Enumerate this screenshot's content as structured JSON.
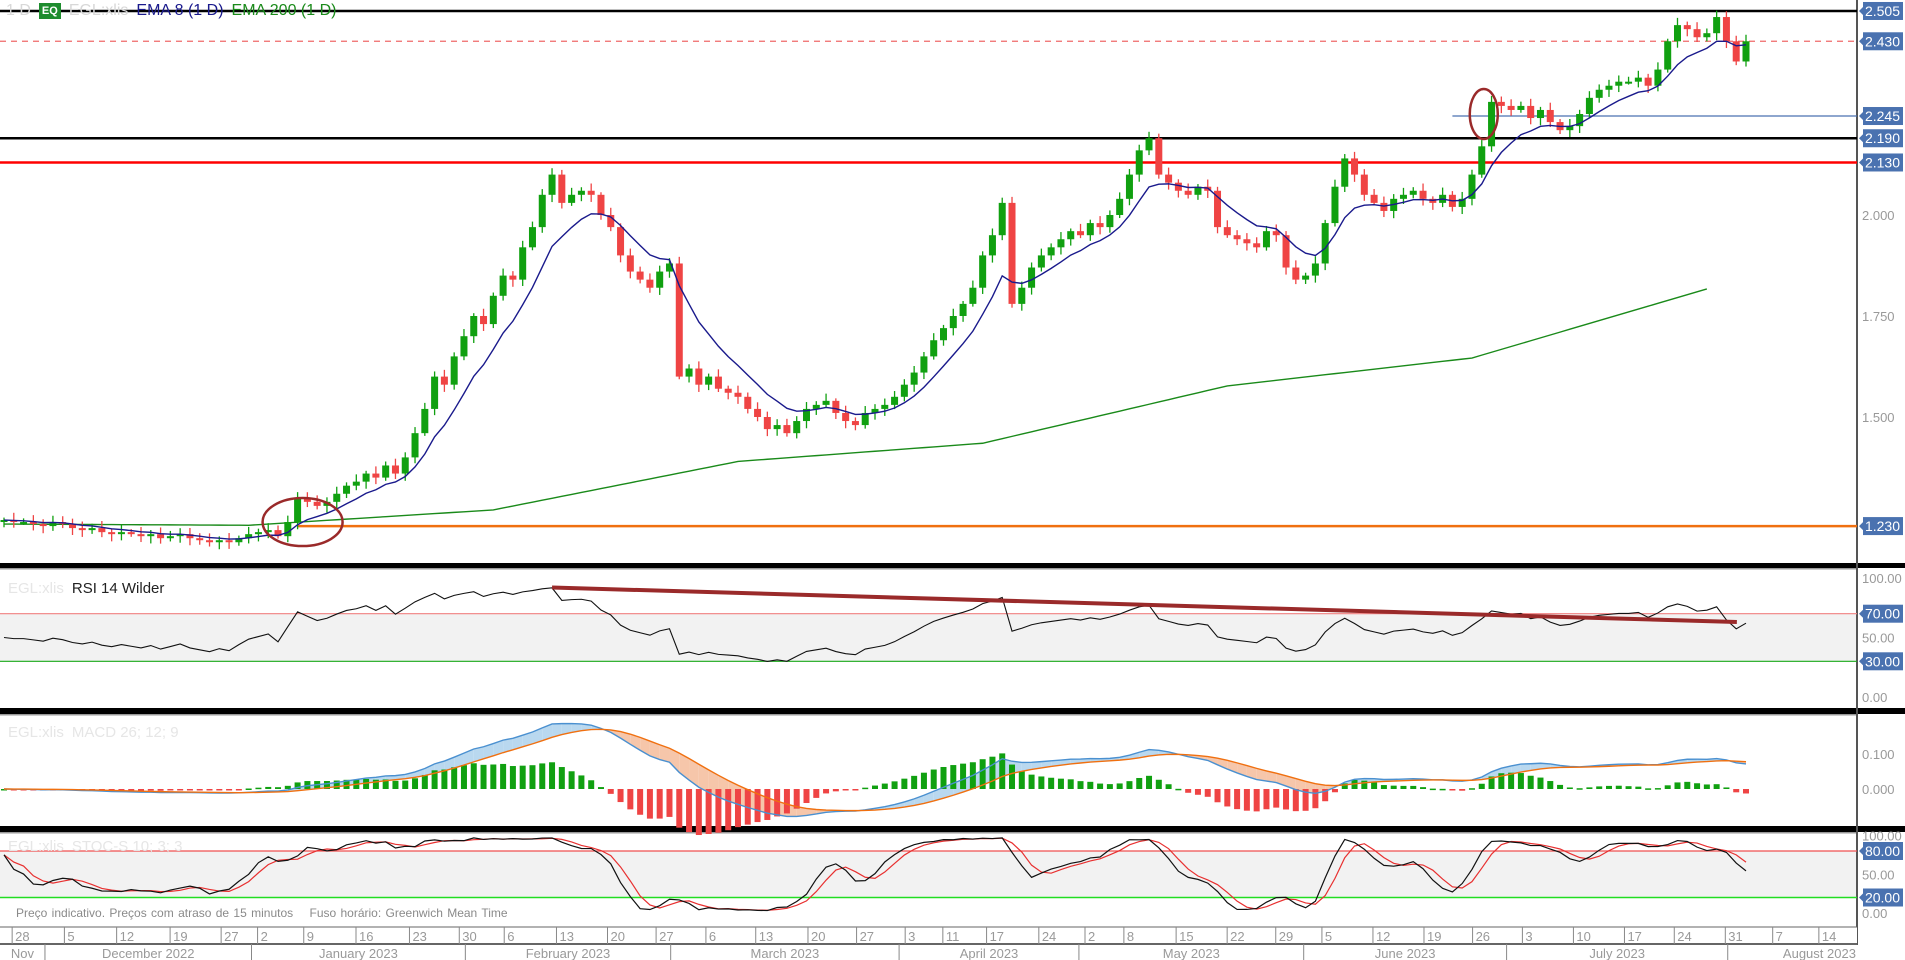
{
  "legend": {
    "interval": "1 D",
    "badge": "EQ",
    "symbol": "EGL:xlis",
    "ema8": "EMA 8 (1 D)",
    "ema200": "EMA 200 (1 D)"
  },
  "panels": {
    "rsi": {
      "symbol": "EGL:xlis",
      "label": "RSI 14 Wilder"
    },
    "macd": {
      "symbol": "EGL:xlis",
      "label": "MACD 26; 12; 9"
    },
    "stoch": {
      "symbol": "EGL:xlis",
      "label": "STOC-S 10; 3; 3"
    }
  },
  "footer": {
    "delay_note": "Preço indicativo. Preços com atraso de 15 minutos",
    "timezone_note": "Fuso horário: Greenwich Mean Time"
  },
  "colors": {
    "up": "#10a010",
    "down": "#ef4444",
    "ema8": "#1a1a8c",
    "ema200": "#1a8a1a",
    "axis_badge": "#4a72b0"
  },
  "chart_data": {
    "type": "candlestick",
    "symbol": "EGL:xlis",
    "interval": "1 D",
    "close": [
      1.245,
      1.24,
      1.24,
      1.235,
      1.23,
      1.24,
      1.235,
      1.225,
      1.22,
      1.225,
      1.215,
      1.21,
      1.215,
      1.21,
      1.205,
      1.21,
      1.2,
      1.205,
      1.21,
      1.2,
      1.195,
      1.19,
      1.195,
      1.19,
      1.2,
      1.21,
      1.215,
      1.22,
      1.205,
      1.24,
      1.3,
      1.29,
      1.28,
      1.29,
      1.31,
      1.33,
      1.34,
      1.36,
      1.35,
      1.38,
      1.36,
      1.4,
      1.46,
      1.52,
      1.6,
      1.58,
      1.65,
      1.7,
      1.75,
      1.73,
      1.8,
      1.85,
      1.84,
      1.92,
      1.97,
      2.05,
      2.1,
      2.03,
      2.05,
      2.06,
      2.05,
      2.0,
      1.97,
      1.9,
      1.86,
      1.84,
      1.82,
      1.86,
      1.88,
      1.6,
      1.62,
      1.58,
      1.6,
      1.57,
      1.56,
      1.55,
      1.52,
      1.5,
      1.47,
      1.48,
      1.46,
      1.49,
      1.52,
      1.53,
      1.54,
      1.51,
      1.49,
      1.48,
      1.51,
      1.52,
      1.53,
      1.55,
      1.58,
      1.61,
      1.65,
      1.69,
      1.72,
      1.75,
      1.78,
      1.82,
      1.9,
      1.95,
      2.03,
      1.78,
      1.82,
      1.87,
      1.9,
      1.92,
      1.94,
      1.96,
      1.95,
      1.98,
      1.97,
      2.0,
      2.04,
      2.1,
      2.16,
      2.19,
      2.1,
      2.08,
      2.06,
      2.05,
      2.07,
      2.06,
      1.97,
      1.95,
      1.94,
      1.93,
      1.92,
      1.96,
      1.95,
      1.87,
      1.84,
      1.85,
      1.88,
      1.98,
      2.07,
      2.14,
      2.1,
      2.05,
      2.03,
      2.01,
      2.04,
      2.05,
      2.06,
      2.04,
      2.03,
      2.05,
      2.02,
      2.04,
      2.1,
      2.17,
      2.28,
      2.27,
      2.26,
      2.27,
      2.24,
      2.26,
      2.23,
      2.21,
      2.22,
      2.25,
      2.29,
      2.31,
      2.32,
      2.33,
      2.33,
      2.34,
      2.32,
      2.36,
      2.43,
      2.47,
      2.46,
      2.44,
      2.45,
      2.49,
      2.43,
      2.38,
      2.43
    ],
    "ema200_anchors": [
      {
        "bar": 0,
        "value": 1.235
      },
      {
        "bar": 25,
        "value": 1.232
      },
      {
        "bar": 50,
        "value": 1.27
      },
      {
        "bar": 75,
        "value": 1.39
      },
      {
        "bar": 100,
        "value": 1.435
      },
      {
        "bar": 125,
        "value": 1.577
      },
      {
        "bar": 150,
        "value": 1.646
      },
      {
        "bar": 174,
        "value": 1.817
      }
    ],
    "price_axis": {
      "ticks": [
        "1.500",
        "1.750",
        "2.000"
      ],
      "range": [
        1.12,
        2.53
      ]
    },
    "horizontal_levels": [
      {
        "value": 2.505,
        "label": "2.505",
        "color": "#000000",
        "style": "solid"
      },
      {
        "value": 2.43,
        "label": "2.430",
        "color": "#ef6a6a",
        "style": "dashed"
      },
      {
        "value": 2.245,
        "label": "2.245",
        "color": "#4a72b0",
        "style": "thin",
        "from_bar": 148
      },
      {
        "value": 2.19,
        "label": "2.190",
        "color": "#000000",
        "style": "solid"
      },
      {
        "value": 2.13,
        "label": "2.130",
        "color": "#ff0000",
        "style": "solid"
      },
      {
        "value": 1.23,
        "label": "1.230",
        "color": "#f07010",
        "style": "solid",
        "from_bar": 30
      }
    ],
    "annotations": [
      {
        "type": "ellipse",
        "bar": 30,
        "value": 1.24
      },
      {
        "type": "ellipse",
        "bar": 151,
        "value": 2.25
      }
    ],
    "rsi": {
      "period": 14,
      "ticks": [
        "100.00",
        "50.00",
        "0.00"
      ],
      "levels": [
        "70.00",
        "30.00"
      ],
      "trendline": [
        {
          "bar": 56,
          "value": 92
        },
        {
          "bar": 174,
          "value": 63
        }
      ]
    },
    "macd": {
      "fast": 12,
      "slow": 26,
      "signal": 9,
      "ticks": [
        "0.100",
        "0.000"
      ]
    },
    "stoch": {
      "k": 10,
      "smooth": 3,
      "d": 3,
      "ticks": [
        "100.00",
        "50.00",
        "0.00"
      ],
      "levels": [
        "80.00",
        "20.00"
      ]
    },
    "x_axis": {
      "days": [
        "28",
        "5",
        "12",
        "19",
        "27",
        "2",
        "9",
        "16",
        "23",
        "30",
        "6",
        "13",
        "20",
        "27",
        "6",
        "13",
        "20",
        "27",
        "3",
        "11",
        "17",
        "24",
        "2",
        "8",
        "15",
        "22",
        "29",
        "5",
        "12",
        "19",
        "26",
        "3",
        "10",
        "17",
        "24",
        "31",
        "7",
        "14"
      ],
      "months": [
        "Nov",
        "December 2022",
        "January 2023",
        "February 2023",
        "March 2023",
        "April 2023",
        "May 2023",
        "June 2023",
        "July 2023",
        "August 2023"
      ]
    }
  }
}
